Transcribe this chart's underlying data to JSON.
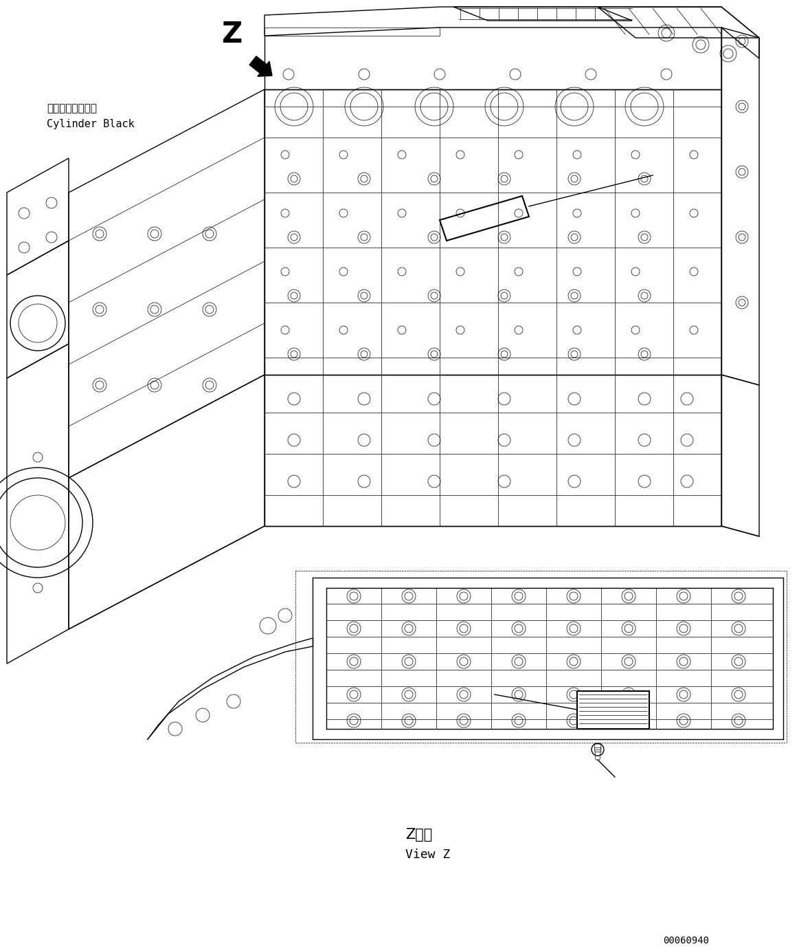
{
  "background_color": "#ffffff",
  "fig_width": 11.63,
  "fig_height": 13.83,
  "dpi": 100,
  "label_z": "Z",
  "label_cylinder_jp": "シリンダブロック",
  "label_cylinder_en": "Cylinder Black",
  "label_view_z_jp": "Z　視",
  "label_view_z_en": "View Z",
  "label_partno": "00060940",
  "line_color": "#000000"
}
